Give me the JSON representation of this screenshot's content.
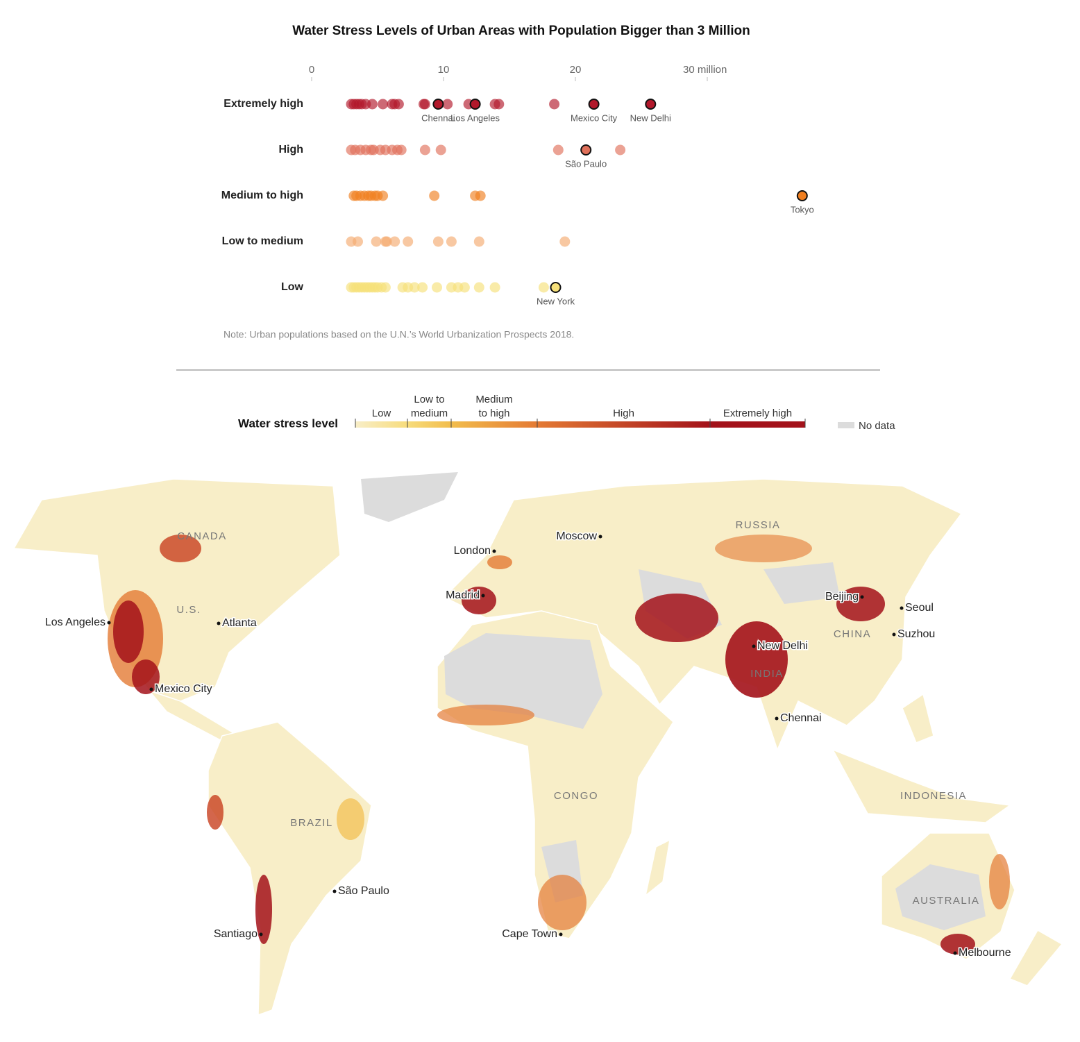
{
  "chart_data": {
    "type": "strip",
    "title": "Water Stress Levels of Urban Areas with Population Bigger than 3 Million",
    "xlim": [
      0,
      40
    ],
    "xticks": [
      0,
      10,
      20,
      {
        "value": 30,
        "label": "30 million"
      }
    ],
    "series": [
      {
        "name": "Extremely high",
        "color": "#b2182b",
        "values": [
          3.0,
          3.2,
          3.4,
          3.6,
          3.8,
          4.1,
          4.6,
          5.4,
          6.1,
          6.3,
          6.6,
          8.5,
          8.6,
          10.3,
          11.9,
          13.9,
          14.2,
          18.4
        ],
        "cities": [
          {
            "name": "Chennai",
            "value": 9.6
          },
          {
            "name": "Los Angeles",
            "value": 12.4
          },
          {
            "name": "Mexico City",
            "value": 21.4
          },
          {
            "name": "New Delhi",
            "value": 25.7
          }
        ]
      },
      {
        "name": "High",
        "color": "#e0705a",
        "values": [
          3.0,
          3.3,
          3.7,
          4.1,
          4.5,
          4.7,
          5.2,
          5.6,
          6.1,
          6.5,
          6.8,
          8.6,
          9.8,
          18.7,
          23.4
        ],
        "cities": [
          {
            "name": "São Paulo",
            "value": 20.8
          }
        ]
      },
      {
        "name": "Medium to high",
        "color": "#f07f20",
        "values": [
          3.2,
          3.4,
          3.7,
          4.0,
          4.3,
          4.5,
          4.8,
          5.0,
          5.4,
          9.3,
          12.4,
          12.8
        ],
        "cities": [
          {
            "name": "Tokyo",
            "value": 37.2
          }
        ]
      },
      {
        "name": "Low to medium",
        "color": "#f4aa70",
        "values": [
          3.0,
          3.5,
          4.9,
          5.6,
          5.7,
          6.3,
          7.3,
          9.6,
          10.6,
          12.7,
          19.2
        ],
        "cities": []
      },
      {
        "name": "Low",
        "color": "#f6e07a",
        "values": [
          3.0,
          3.2,
          3.4,
          3.6,
          3.8,
          4.0,
          4.2,
          4.4,
          4.6,
          4.8,
          5.0,
          5.3,
          5.6,
          6.9,
          7.3,
          7.8,
          8.4,
          9.5,
          10.6,
          11.1,
          11.6,
          12.7,
          13.9,
          17.6
        ],
        "cities": [
          {
            "name": "New York",
            "value": 18.5
          }
        ]
      }
    ],
    "note": "Note: Urban populations based on the U.N.’s World Urbanization Prospects 2018."
  },
  "map": {
    "legend": {
      "title": "Water stress level",
      "levels": [
        {
          "name": "Low",
          "color": "#f8eec8"
        },
        {
          "name": "Low to medium",
          "color": "#f7dc7c"
        },
        {
          "name": "Medium to high",
          "color": "#f2bd4c"
        },
        {
          "name": "High",
          "color": "#e47a34"
        },
        {
          "name": "Extremely high",
          "color": "#a3121a"
        }
      ],
      "no_data": {
        "name": "No data",
        "color": "#dcdcdc"
      }
    },
    "countries": [
      "CANADA",
      "U.S.",
      "RUSSIA",
      "CHINA",
      "INDIA",
      "BRAZIL",
      "CONGO",
      "INDONESIA",
      "AUSTRALIA"
    ],
    "cities": [
      "Los Angeles",
      "Atlanta",
      "Mexico City",
      "London",
      "Moscow",
      "Madrid",
      "Beijing",
      "Seoul",
      "Suzhou",
      "New Delhi",
      "Chennai",
      "São Paulo",
      "Santiago",
      "Cape Town",
      "Melbourne"
    ]
  }
}
